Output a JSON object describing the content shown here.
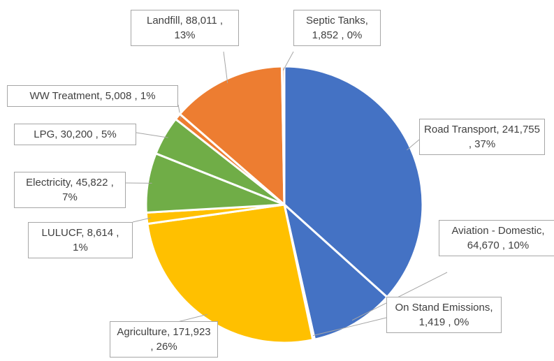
{
  "chart_data": {
    "type": "pie",
    "categories": [
      "Road Transport",
      "Aviation - Domestic",
      "On Stand Emissions",
      "Agriculture",
      "LULUCF",
      "Electricity",
      "LPG",
      "WW Treatment",
      "Landfill",
      "Septic Tanks"
    ],
    "values": [
      241755,
      64670,
      1419,
      171923,
      8614,
      45822,
      30200,
      5008,
      88011,
      1852
    ],
    "value_labels": [
      "241,755",
      "64,670",
      "1,419",
      "171,923",
      "8,614",
      "45,822",
      "30,200",
      "5,008",
      "88,011",
      "1,852"
    ],
    "percent_labels": [
      "37%",
      "10%",
      "0%",
      "26%",
      "1%",
      "7%",
      "5%",
      "1%",
      "13%",
      "0%"
    ],
    "colors": [
      "#4472c4",
      "#4472c4",
      "#4472c4",
      "#ffc000",
      "#ffc000",
      "#70ad47",
      "#70ad47",
      "#ed7d31",
      "#ed7d31",
      "#ed7d31"
    ]
  }
}
